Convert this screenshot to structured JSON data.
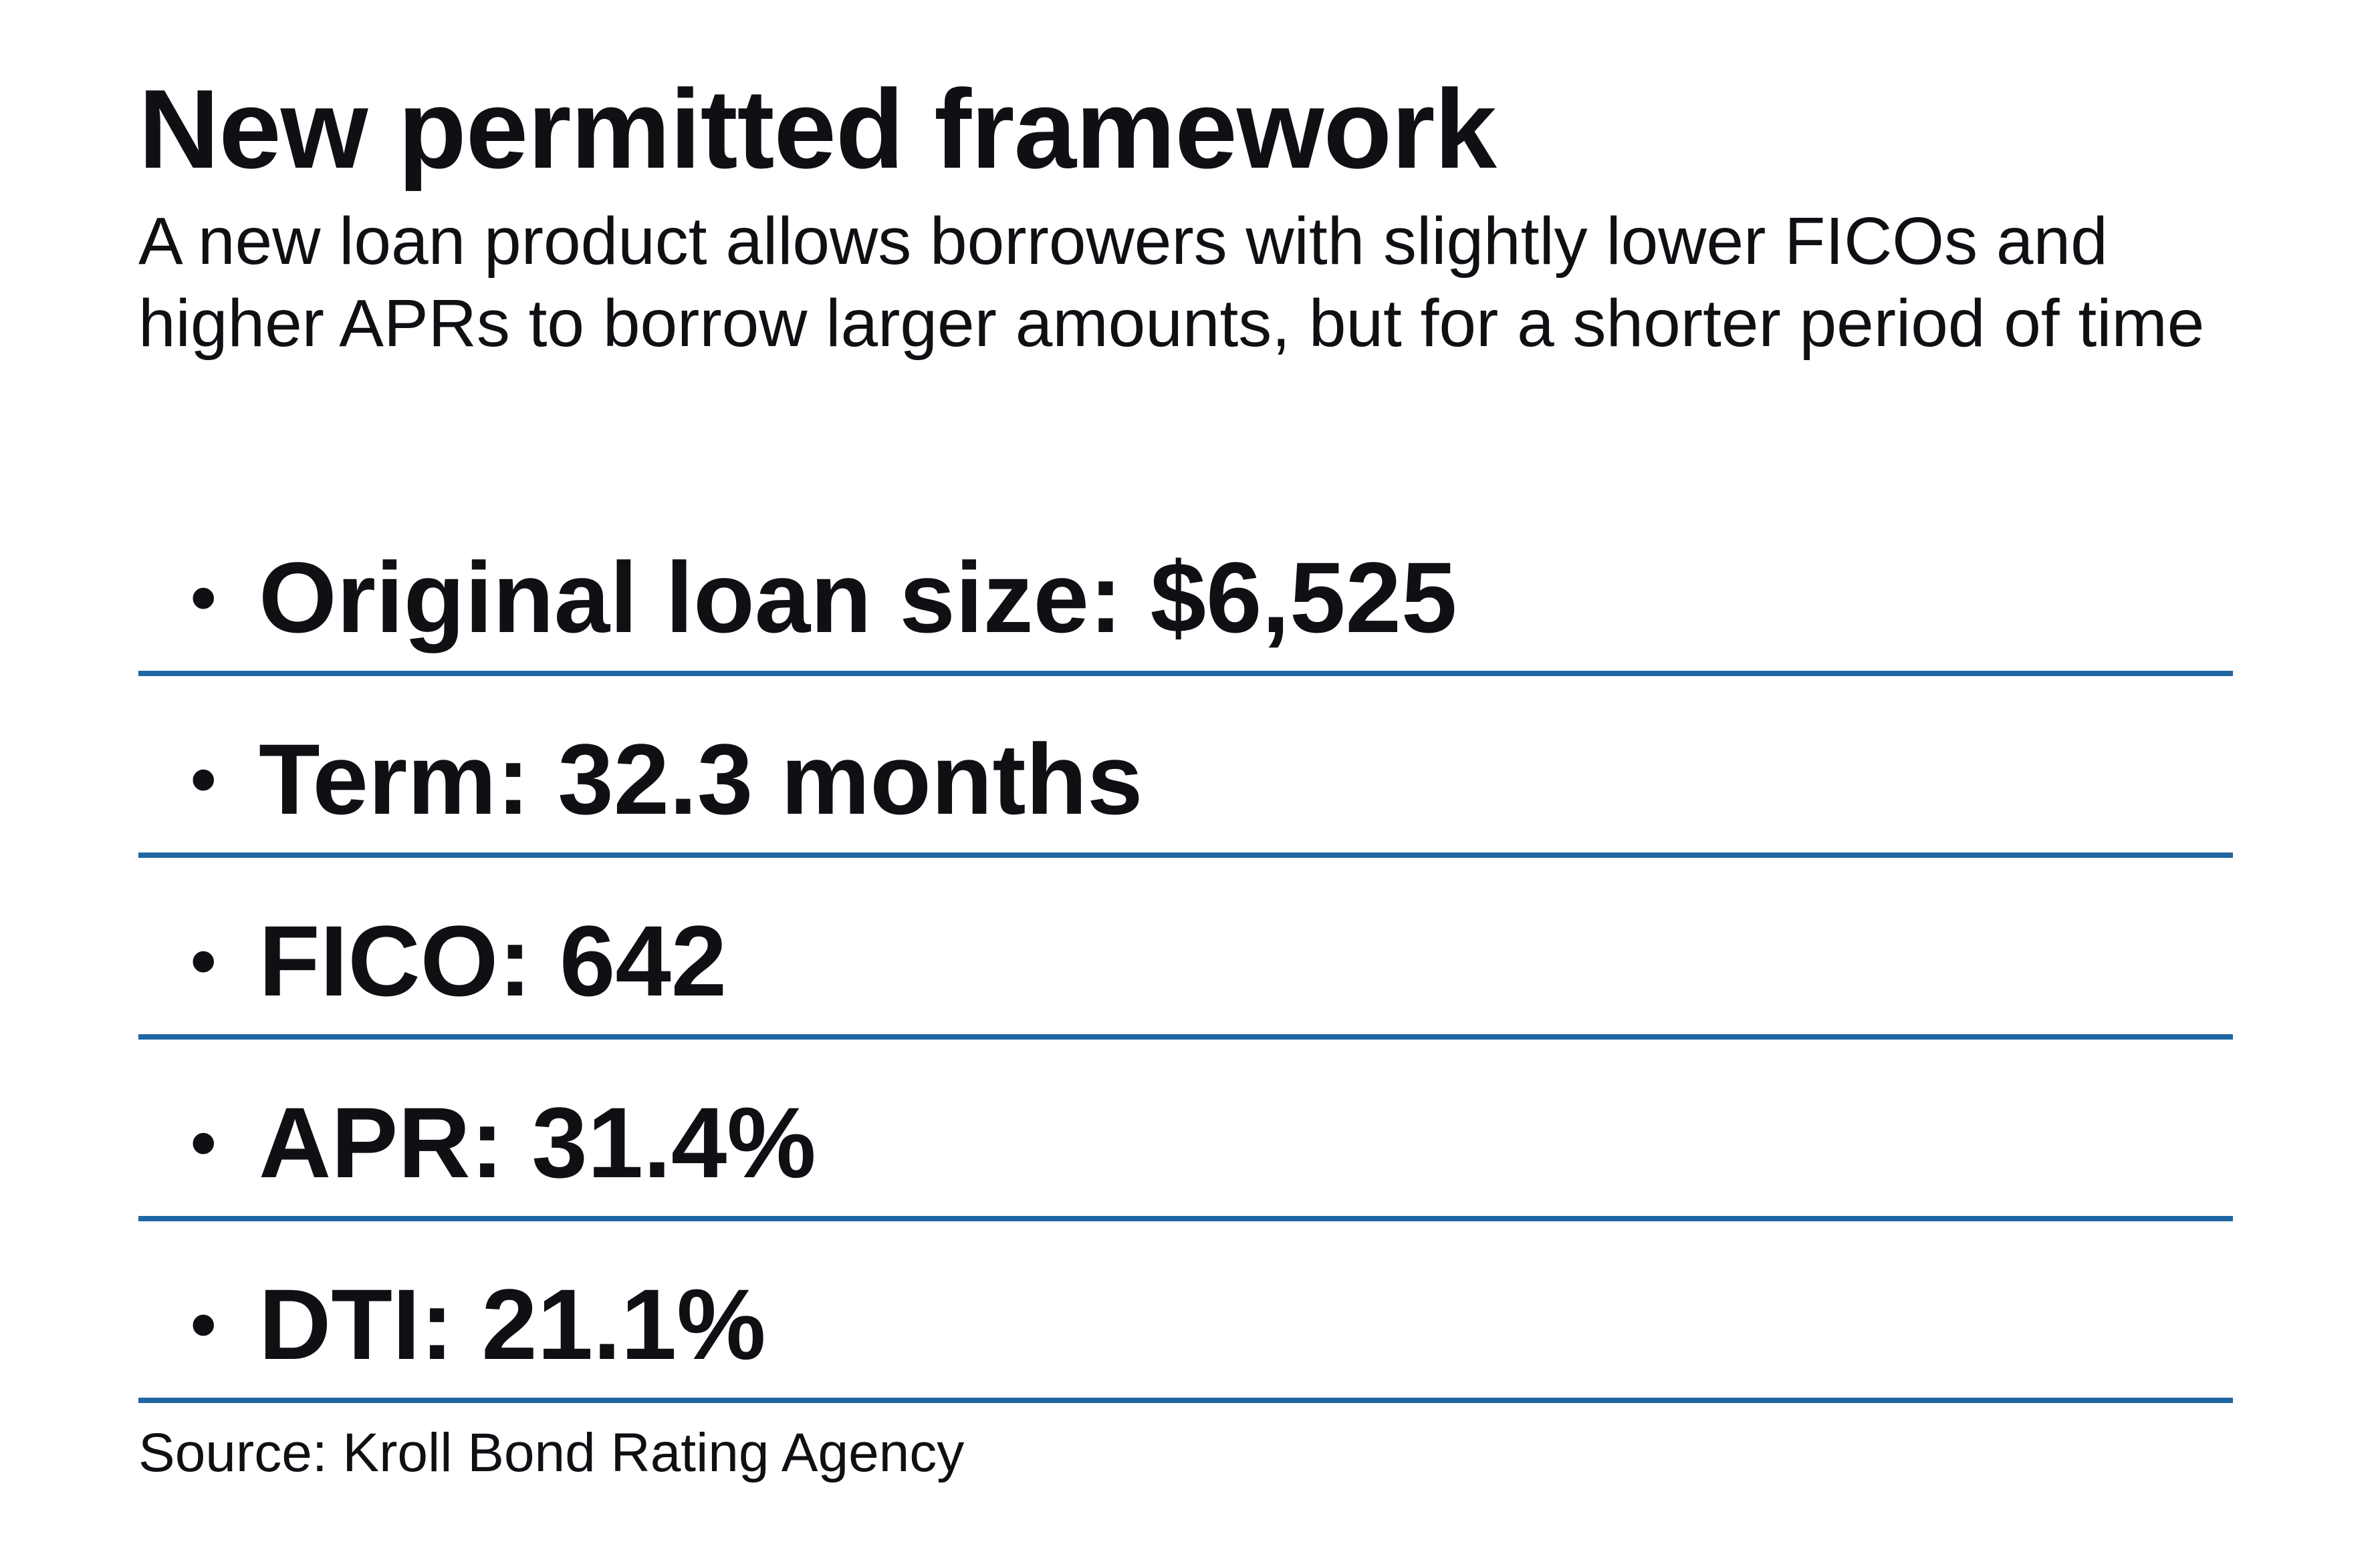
{
  "title": "New permitted framework",
  "subtitle": "A new loan product allows borrowers with slightly lower FICOs and higher APRs to borrow larger amounts, but for a shorter period of time",
  "bullet_glyph": "•",
  "items": [
    {
      "label": "Original loan size: $6,525"
    },
    {
      "label": "Term: 32.3 months"
    },
    {
      "label": "FICO: 642"
    },
    {
      "label": "APR: 31.4%"
    },
    {
      "label": "DTI: 21.1%"
    }
  ],
  "source": "Source: Kroll Bond Rating Agency",
  "colors": {
    "text": "#0f0f14",
    "rule": "#1f66a3",
    "background": "#ffffff"
  }
}
